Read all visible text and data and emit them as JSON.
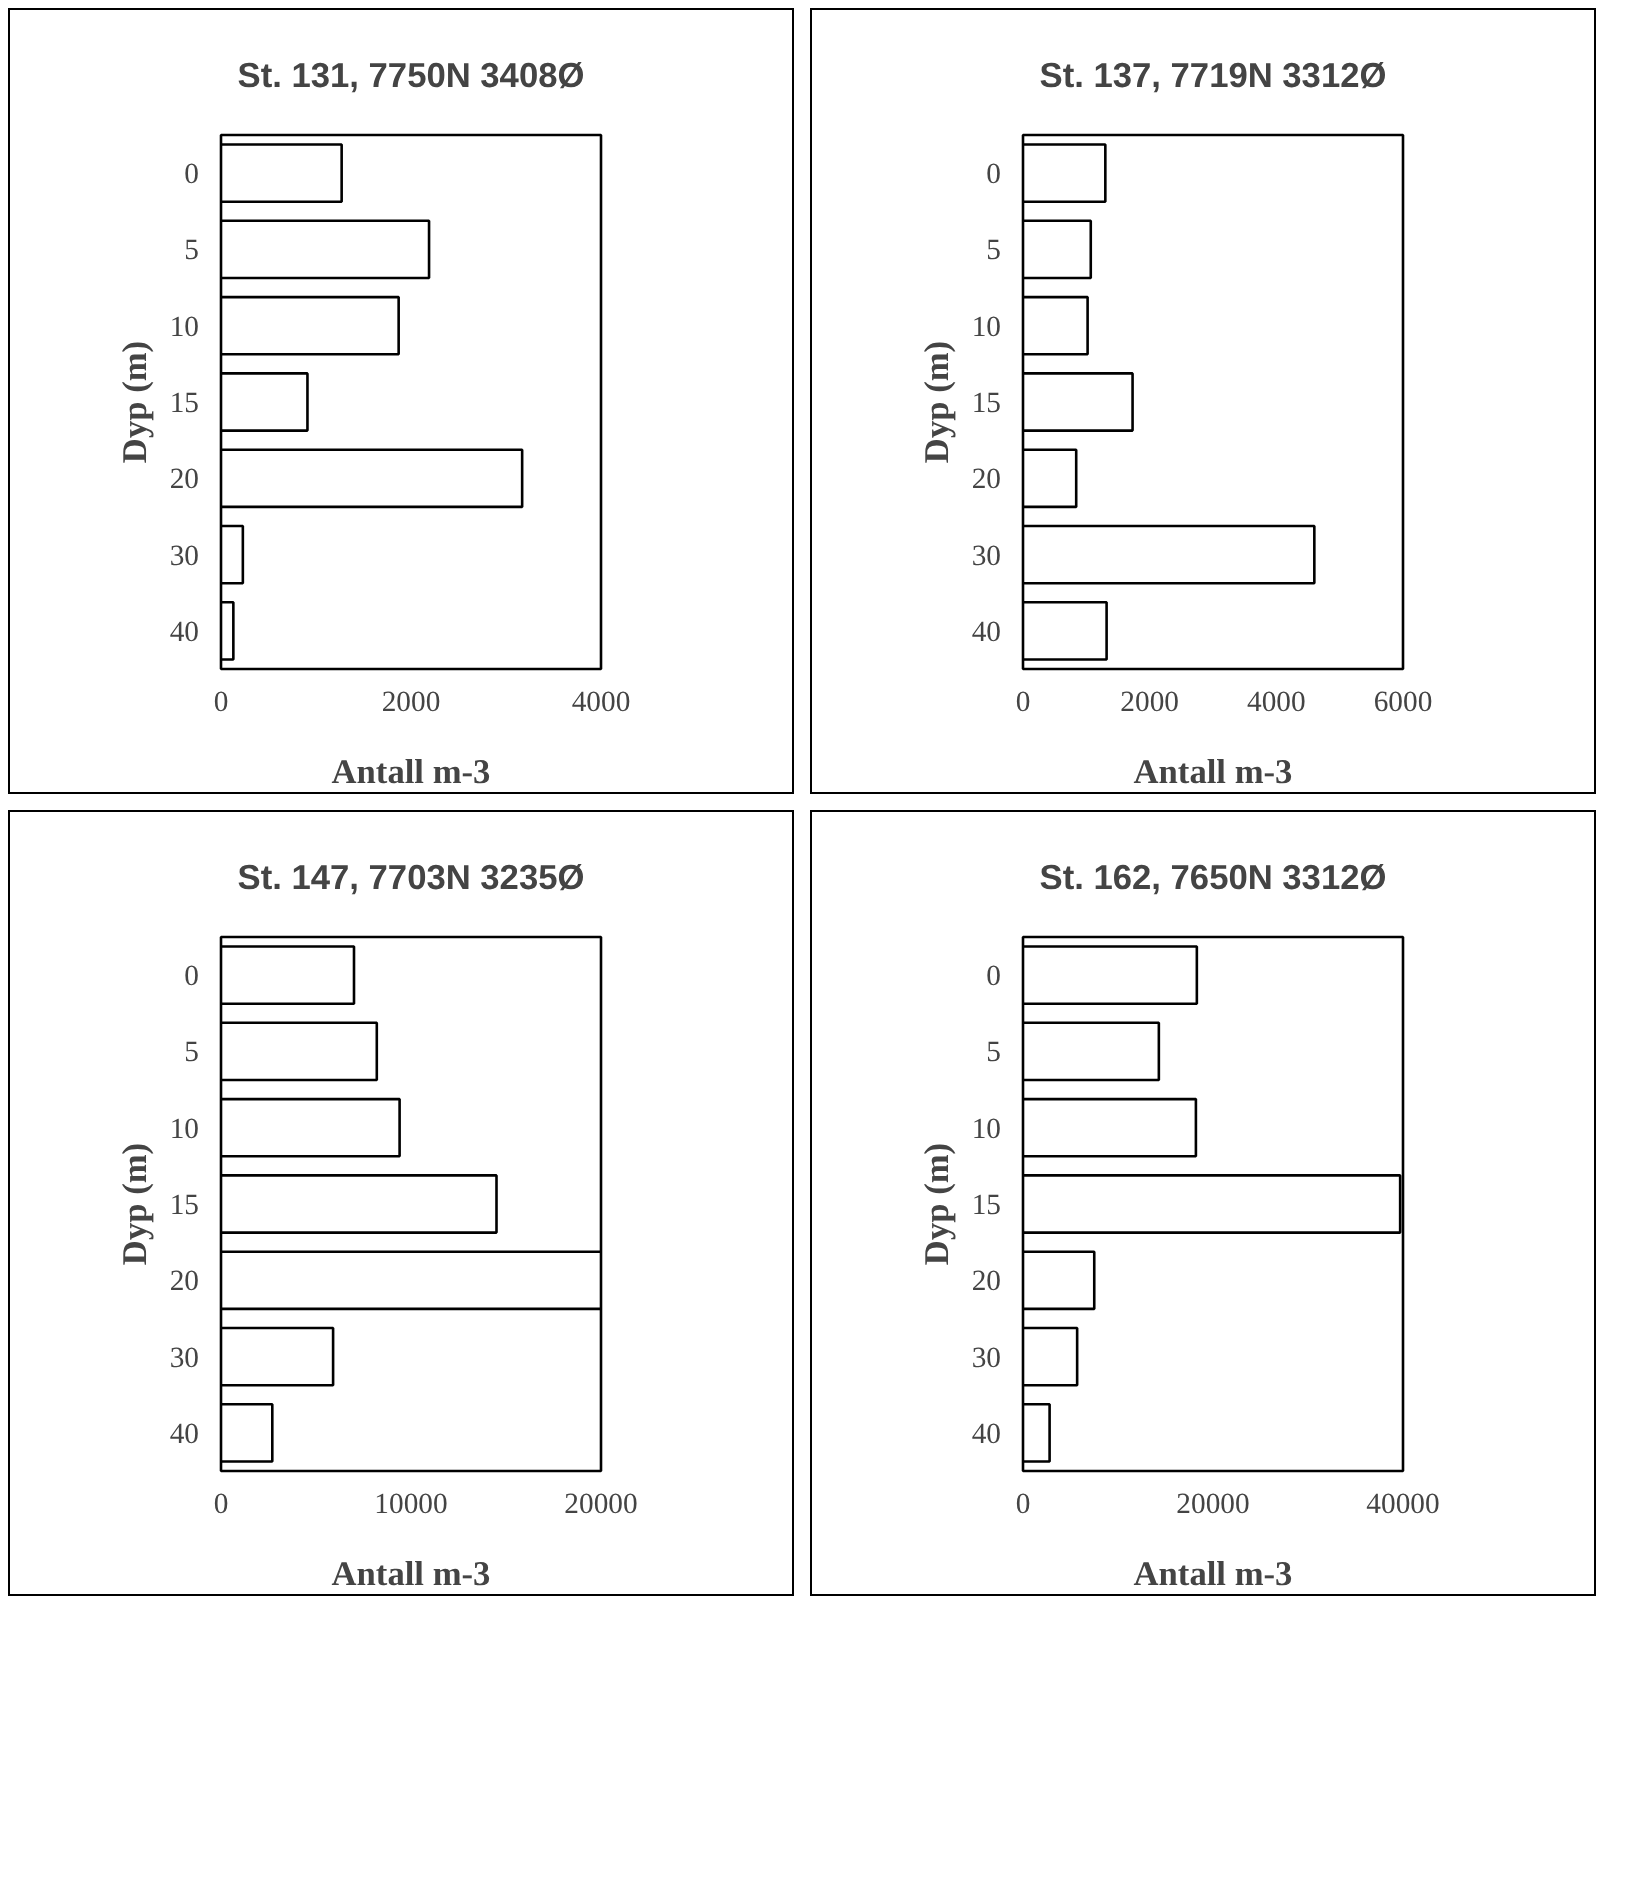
{
  "chart_data": [
    {
      "type": "bar",
      "orientation": "horizontal",
      "title": "St. 131, 7750N 3408Ø",
      "xlabel": "Antall m-3",
      "ylabel": "Dyp (m)",
      "categories": [
        "0",
        "5",
        "10",
        "15",
        "20",
        "30",
        "40"
      ],
      "values": [
        1270,
        2190,
        1870,
        910,
        3170,
        230,
        130
      ],
      "color": "#ffffff",
      "xlim": [
        0,
        4000
      ],
      "xticks": [
        0,
        2000,
        4000
      ]
    },
    {
      "type": "bar",
      "orientation": "horizontal",
      "title": "St. 137, 7719N 3312Ø",
      "xlabel": "Antall m-3",
      "ylabel": "Dyp (m)",
      "categories": [
        "0",
        "5",
        "10",
        "15",
        "20",
        "30",
        "40"
      ],
      "values": [
        1300,
        1070,
        1020,
        1730,
        840,
        4600,
        1320
      ],
      "color": "#ffffff",
      "xlim": [
        0,
        6000
      ],
      "xticks": [
        0,
        2000,
        4000,
        6000
      ]
    },
    {
      "type": "bar",
      "orientation": "horizontal",
      "title": "St. 147, 7703N 3235Ø",
      "xlabel": "Antall m-3",
      "ylabel": "Dyp (m)",
      "categories": [
        "0",
        "5",
        "10",
        "15",
        "20",
        "30",
        "40"
      ],
      "values": [
        7000,
        8200,
        9400,
        14500,
        20000,
        5900,
        2700
      ],
      "color": "#ffffff",
      "xlim": [
        0,
        20000
      ],
      "xticks": [
        0,
        10000,
        20000
      ]
    },
    {
      "type": "bar",
      "orientation": "horizontal",
      "title": "St. 162, 7650N 3312Ø",
      "xlabel": "Antall m-3",
      "ylabel": "Dyp (m)",
      "categories": [
        "0",
        "5",
        "10",
        "15",
        "20",
        "30",
        "40"
      ],
      "values": [
        18300,
        14300,
        18200,
        39700,
        7500,
        5700,
        2800
      ],
      "color": "#ffffff",
      "xlim": [
        0,
        40000
      ],
      "xticks": [
        0,
        20000,
        40000
      ]
    }
  ]
}
